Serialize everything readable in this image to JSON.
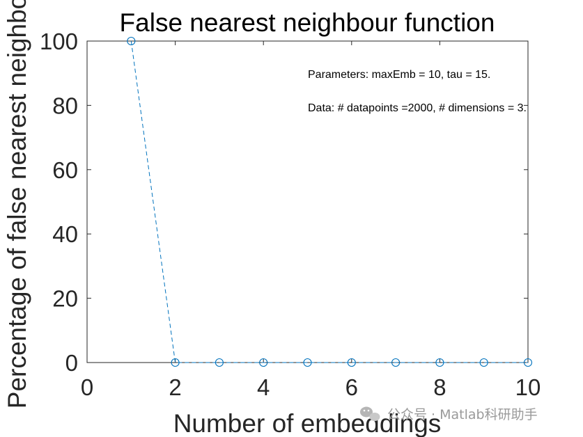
{
  "chart_data": {
    "type": "line",
    "title": "False nearest neighbour function",
    "xlabel": "Number of embeddings",
    "ylabel": "Percentage of false nearest neighbo",
    "xlim": [
      0,
      10
    ],
    "ylim": [
      0,
      100
    ],
    "xticks": [
      0,
      2,
      4,
      6,
      8,
      10
    ],
    "yticks": [
      0,
      20,
      40,
      60,
      80,
      100
    ],
    "grid": false,
    "series": [
      {
        "x": [
          1,
          2,
          3,
          4,
          5,
          6,
          7,
          8,
          9,
          10
        ],
        "values": [
          100,
          0,
          0,
          0,
          0,
          0,
          0,
          0,
          0,
          0
        ],
        "line_style": "dashed",
        "marker": "circle",
        "color": "#0072BD"
      }
    ],
    "annotations": [
      "Parameters: maxEmb = 10, tau = 15.",
      "Data: # datapoints =2000, # dimensions = 3."
    ]
  },
  "watermark": {
    "text": "公众号 · Matlab科研助手",
    "icon": "wechat-icon"
  }
}
